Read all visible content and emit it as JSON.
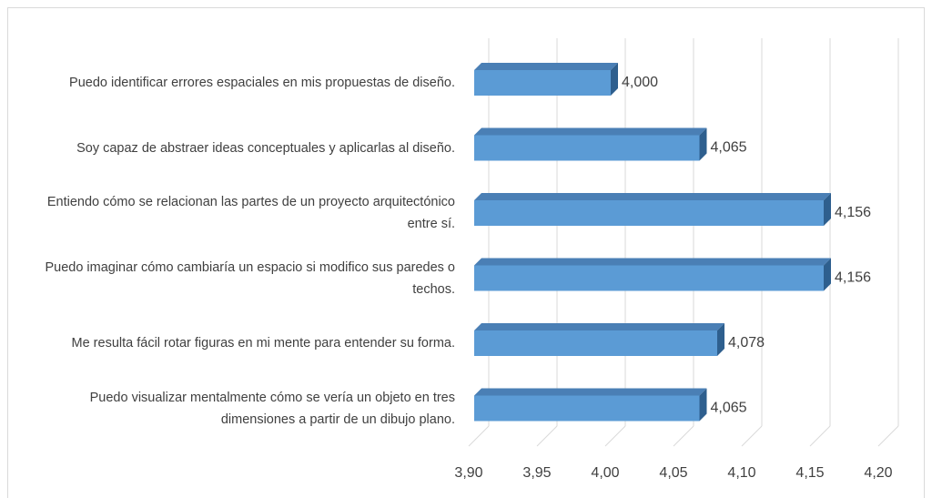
{
  "chart_data": {
    "type": "bar3d",
    "categories": [
      "Puedo identificar errores espaciales en mis propuestas de diseño.",
      "Soy capaz de abstraer ideas conceptuales y aplicarlas al diseño.",
      "Entiendo cómo se relacionan las partes de un proyecto arquitectónico entre sí.",
      "Puedo imaginar cómo cambiaría un espacio si modifico sus paredes o techos.",
      "Me resulta fácil rotar figuras en mi mente para entender su forma.",
      "Puedo visualizar mentalmente cómo se vería un objeto en tres dimensiones a partir de un dibujo plano."
    ],
    "values": [
      4.0,
      4.065,
      4.156,
      4.156,
      4.078,
      4.065
    ],
    "value_labels": [
      "4,000",
      "4,065",
      "4,156",
      "4,156",
      "4,078",
      "4,065"
    ],
    "color": "#5b9bd5",
    "xlim": [
      3.9,
      4.2
    ],
    "xticks": [
      {
        "value": 3.9,
        "label": "3,90"
      },
      {
        "value": 3.95,
        "label": "3,95"
      },
      {
        "value": 4.0,
        "label": "4,00"
      },
      {
        "value": 4.05,
        "label": "4,05"
      },
      {
        "value": 4.1,
        "label": "4,10"
      },
      {
        "value": 4.15,
        "label": "4,15"
      },
      {
        "value": 4.2,
        "label": "4,20"
      }
    ],
    "grid": true
  }
}
